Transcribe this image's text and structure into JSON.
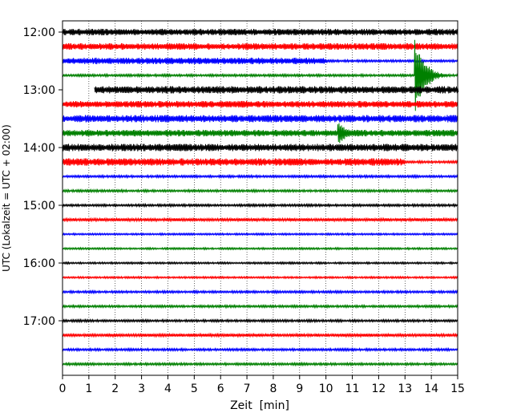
{
  "chart_data": {
    "type": "line",
    "title": "",
    "xlabel": "Zeit  [min]",
    "ylabel": "UTC (Lokalzeit = UTC + 02:00)",
    "xlim": [
      0,
      15
    ],
    "x_ticks": [
      0,
      1,
      2,
      3,
      4,
      5,
      6,
      7,
      8,
      9,
      10,
      11,
      12,
      13,
      14,
      15
    ],
    "y_ticks": [
      {
        "label": "12:00",
        "trace": 0
      },
      {
        "label": "13:00",
        "trace": 4
      },
      {
        "label": "14:00",
        "trace": 8
      },
      {
        "label": "15:00",
        "trace": 12
      },
      {
        "label": "16:00",
        "trace": 16
      },
      {
        "label": "17:00",
        "trace": 20
      }
    ],
    "grid": "x",
    "trace_minutes": 15,
    "colors": [
      "#000000",
      "#ff0000",
      "#0000ff",
      "#008000"
    ],
    "traces": [
      {
        "start": "12:00",
        "color": "#000000",
        "level": 0.45
      },
      {
        "start": "12:15",
        "color": "#ff0000",
        "level": 0.45
      },
      {
        "start": "12:30",
        "color": "#0000ff",
        "level": 0.45,
        "level_after_10min": 0.15
      },
      {
        "start": "12:45",
        "color": "#008000",
        "level": 0.15,
        "event_at_min": 13.4,
        "event_peak": 6.0
      },
      {
        "start": "13:00",
        "color": "#000000",
        "level": 0.5,
        "start_min": 1.2
      },
      {
        "start": "13:15",
        "color": "#ff0000",
        "level": 0.45
      },
      {
        "start": "13:30",
        "color": "#0000ff",
        "level": 0.5
      },
      {
        "start": "13:45",
        "color": "#008000",
        "level": 0.45,
        "event_at_min": 10.5,
        "event_peak": 1.8
      },
      {
        "start": "14:00",
        "color": "#000000",
        "level": 0.5
      },
      {
        "start": "14:15",
        "color": "#ff0000",
        "level": 0.5,
        "level_after_13min": 0.15
      },
      {
        "start": "14:30",
        "color": "#0000ff",
        "level": 0.15
      },
      {
        "start": "14:45",
        "color": "#008000",
        "level": 0.15
      },
      {
        "start": "15:00",
        "color": "#000000",
        "level": 0.15
      },
      {
        "start": "15:15",
        "color": "#ff0000",
        "level": 0.2
      },
      {
        "start": "15:30",
        "color": "#0000ff",
        "level": 0.12
      },
      {
        "start": "15:45",
        "color": "#008000",
        "level": 0.12
      },
      {
        "start": "16:00",
        "color": "#000000",
        "level": 0.12
      },
      {
        "start": "16:15",
        "color": "#ff0000",
        "level": 0.12
      },
      {
        "start": "16:30",
        "color": "#0000ff",
        "level": 0.15
      },
      {
        "start": "16:45",
        "color": "#008000",
        "level": 0.15
      },
      {
        "start": "17:00",
        "color": "#000000",
        "level": 0.15
      },
      {
        "start": "17:15",
        "color": "#ff0000",
        "level": 0.2
      },
      {
        "start": "17:30",
        "color": "#0000ff",
        "level": 0.15
      },
      {
        "start": "17:45",
        "color": "#008000",
        "level": 0.15
      }
    ]
  }
}
